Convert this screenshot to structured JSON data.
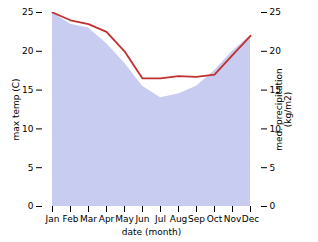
{
  "chart_data": {
    "type": "area",
    "xlabel": "date (month)",
    "ylabel": "max temp (C)",
    "y2label": "med. precipitation\n(kg/m2)",
    "categories": [
      "Jan",
      "Feb",
      "Mar",
      "Apr",
      "May",
      "Jun",
      "Jul",
      "Aug",
      "Sep",
      "Oct",
      "Nov",
      "Dec"
    ],
    "series": [
      {
        "type": "area",
        "color": "#c8ccf0",
        "values": [
          25.0,
          23.5,
          23.0,
          21.0,
          18.5,
          15.5,
          14.0,
          14.5,
          15.5,
          17.5,
          20.0,
          22.0
        ]
      },
      {
        "type": "line",
        "color": "#c03030",
        "axis": "y2",
        "values": [
          25.0,
          24.0,
          23.5,
          22.5,
          20.0,
          16.5,
          16.5,
          16.8,
          16.7,
          17.0,
          19.5,
          22.0
        ]
      }
    ],
    "ylim": [
      0,
      25
    ],
    "yticks": [
      0,
      5,
      10,
      15,
      20,
      25
    ],
    "y2lim": [
      0,
      25
    ],
    "y2ticks": [
      0,
      5,
      10,
      15,
      20,
      25
    ]
  }
}
